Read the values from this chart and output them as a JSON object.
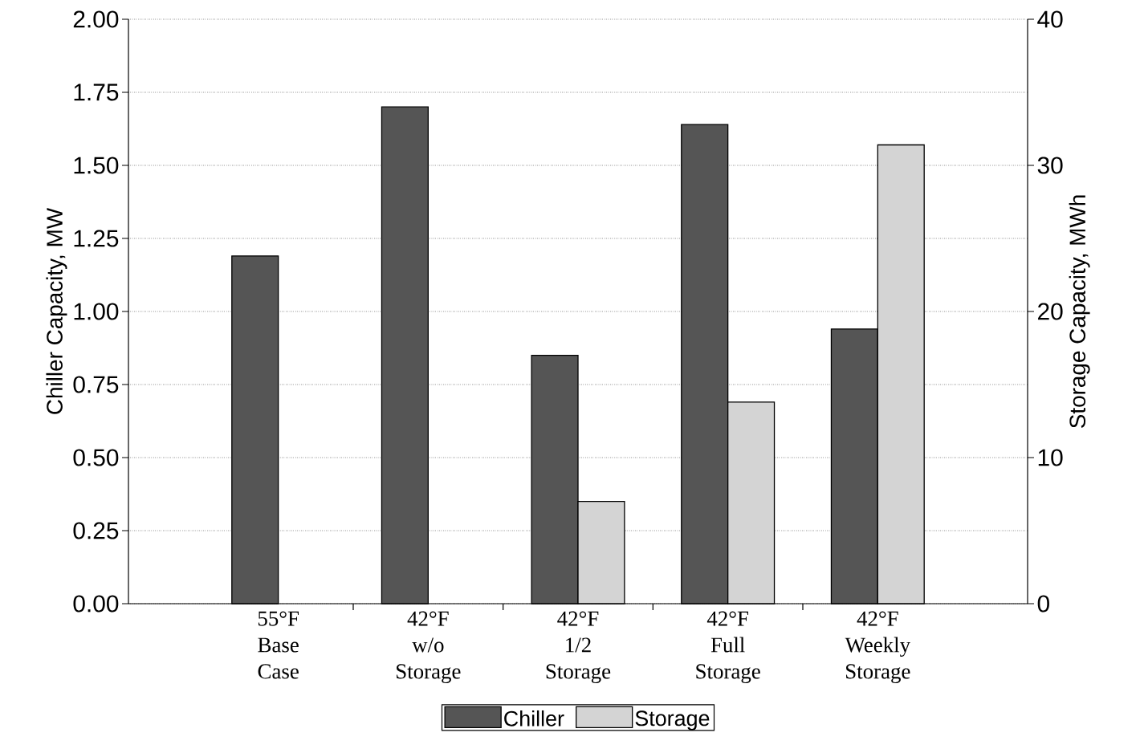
{
  "chart_data": {
    "type": "bar",
    "categories": [
      "55°F Base Case",
      "42°F w/o Storage",
      "42°F 1/2 Storage",
      "42°F Full Storage",
      "42°F Weekly Storage"
    ],
    "series": [
      {
        "name": "Chiller",
        "color": "#555555",
        "values": [
          1.19,
          1.7,
          0.85,
          1.64,
          0.94
        ]
      },
      {
        "name": "Storage",
        "color": "#d4d4d4",
        "axis": "y2",
        "values": [
          null,
          null,
          7.0,
          13.8,
          31.4
        ]
      }
    ],
    "ylabel": "Chiller Capacity, MW",
    "y2label": "Storage Capacity, MWh",
    "ylim": [
      0,
      2
    ],
    "yticks": [
      {
        "value": 0,
        "label": "0.00"
      },
      {
        "value": 0.25,
        "label": "0.25"
      },
      {
        "value": 0.5,
        "label": "0.50"
      },
      {
        "value": 0.75,
        "label": "0.75"
      },
      {
        "value": 1,
        "label": "1.00"
      },
      {
        "value": 1.25,
        "label": "1.25"
      },
      {
        "value": 1.5,
        "label": "1.50"
      },
      {
        "value": 1.75,
        "label": "1.75"
      },
      {
        "value": 2,
        "label": "2.00"
      }
    ],
    "y2lim": [
      0,
      40
    ],
    "y2ticks": [
      0,
      10,
      20,
      30,
      40
    ],
    "grid": "y",
    "legend": "bottom"
  }
}
